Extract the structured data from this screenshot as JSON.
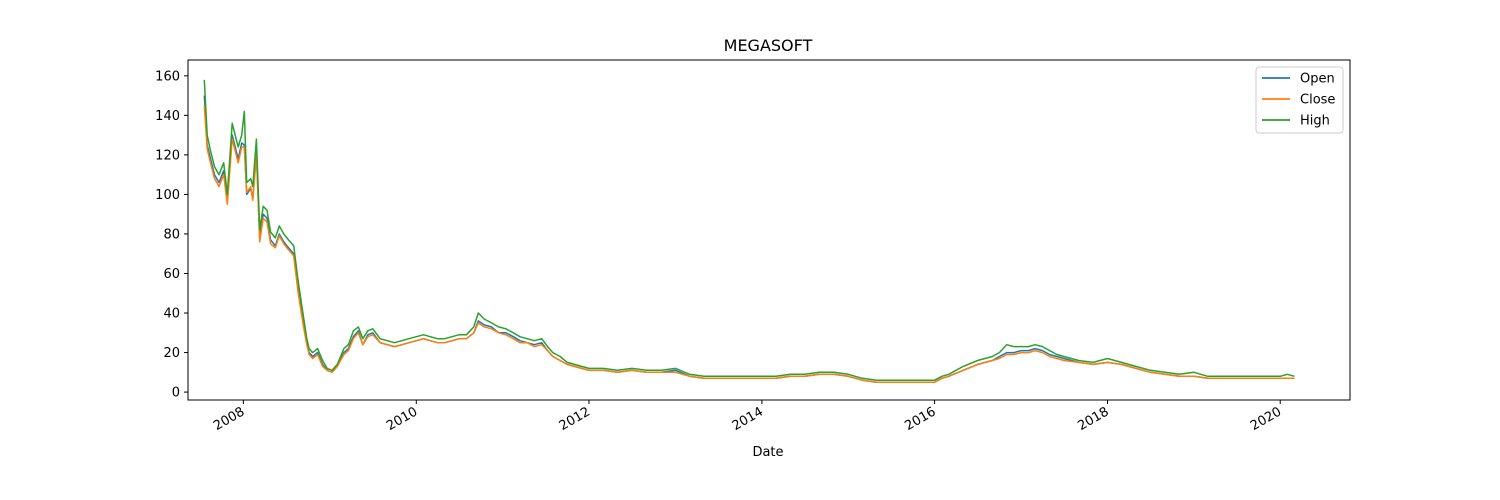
{
  "chart_data": {
    "type": "line",
    "title": "MEGASOFT",
    "xlabel": "Date",
    "ylabel": "",
    "x_ticks": [
      "2008",
      "2010",
      "2012",
      "2014",
      "2016",
      "2018",
      "2020"
    ],
    "y_ticks": [
      0,
      20,
      40,
      60,
      80,
      100,
      120,
      140,
      160
    ],
    "xlim": [
      "2007-05-12",
      "2020-10-22"
    ],
    "ylim": [
      -4,
      168
    ],
    "grid": false,
    "legend_position": "upper right",
    "x": [
      "2007-07-20",
      "2007-08-01",
      "2007-08-15",
      "2007-09-01",
      "2007-09-20",
      "2007-10-10",
      "2007-10-25",
      "2007-11-15",
      "2007-12-10",
      "2007-12-25",
      "2008-01-05",
      "2008-01-15",
      "2008-02-01",
      "2008-02-10",
      "2008-02-25",
      "2008-03-10",
      "2008-03-25",
      "2008-04-10",
      "2008-04-25",
      "2008-05-15",
      "2008-06-01",
      "2008-06-20",
      "2008-07-10",
      "2008-08-01",
      "2008-08-20",
      "2008-09-10",
      "2008-09-25",
      "2008-10-05",
      "2008-10-20",
      "2008-11-10",
      "2008-12-01",
      "2008-12-20",
      "2009-01-10",
      "2009-02-01",
      "2009-03-01",
      "2009-03-20",
      "2009-04-10",
      "2009-05-01",
      "2009-05-20",
      "2009-06-10",
      "2009-07-01",
      "2009-08-01",
      "2009-09-01",
      "2009-10-01",
      "2009-11-01",
      "2009-12-01",
      "2010-01-01",
      "2010-02-01",
      "2010-03-01",
      "2010-04-01",
      "2010-05-01",
      "2010-06-01",
      "2010-07-01",
      "2010-08-01",
      "2010-09-01",
      "2010-09-20",
      "2010-10-15",
      "2010-11-15",
      "2010-12-15",
      "2011-01-15",
      "2011-02-15",
      "2011-03-15",
      "2011-04-15",
      "2011-05-15",
      "2011-06-15",
      "2011-07-10",
      "2011-08-01",
      "2011-09-01",
      "2011-10-01",
      "2011-11-01",
      "2011-12-01",
      "2012-01-01",
      "2012-03-01",
      "2012-05-01",
      "2012-07-01",
      "2012-09-01",
      "2012-11-01",
      "2013-01-01",
      "2013-03-01",
      "2013-05-01",
      "2013-07-01",
      "2013-09-01",
      "2013-11-01",
      "2014-01-01",
      "2014-03-01",
      "2014-05-01",
      "2014-07-01",
      "2014-09-01",
      "2014-11-01",
      "2015-01-01",
      "2015-03-01",
      "2015-05-01",
      "2015-07-01",
      "2015-09-01",
      "2015-11-01",
      "2016-01-01",
      "2016-02-01",
      "2016-03-01",
      "2016-05-01",
      "2016-07-01",
      "2016-09-01",
      "2016-10-01",
      "2016-11-01",
      "2016-12-01",
      "2017-01-01",
      "2017-02-01",
      "2017-03-01",
      "2017-04-01",
      "2017-05-01",
      "2017-06-01",
      "2017-07-01",
      "2017-09-01",
      "2017-11-01",
      "2018-01-01",
      "2018-03-01",
      "2018-05-01",
      "2018-07-01",
      "2018-09-01",
      "2018-11-01",
      "2019-01-01",
      "2019-03-01",
      "2019-05-01",
      "2019-07-01",
      "2019-09-01",
      "2019-11-01",
      "2020-01-01",
      "2020-02-01",
      "2020-03-01"
    ],
    "series": [
      {
        "name": "Open",
        "color": "#1f77b4",
        "values": [
          150,
          125,
          118,
          110,
          106,
          112,
          97,
          130,
          118,
          126,
          125,
          100,
          103,
          98,
          122,
          78,
          90,
          88,
          77,
          74,
          80,
          76,
          73,
          70,
          52,
          36,
          25,
          20,
          18,
          20,
          14,
          11,
          10,
          13,
          20,
          22,
          28,
          31,
          24,
          29,
          30,
          25,
          24,
          23,
          24,
          25,
          26,
          27,
          26,
          25,
          25,
          26,
          27,
          27,
          30,
          36,
          34,
          33,
          30,
          30,
          28,
          26,
          25,
          24,
          25,
          21,
          18,
          16,
          14,
          13,
          12,
          11,
          11,
          10,
          11,
          10,
          10,
          11,
          8,
          7,
          7,
          7,
          7,
          7,
          7,
          8,
          8,
          9,
          9,
          8,
          6,
          5,
          5,
          5,
          5,
          5,
          7,
          8,
          11,
          14,
          16,
          18,
          20,
          20,
          21,
          21,
          22,
          21,
          19,
          18,
          17,
          15,
          14,
          15,
          14,
          12,
          10,
          9,
          8,
          8,
          7,
          7,
          7,
          7,
          7,
          7,
          7,
          7
        ]
      },
      {
        "name": "Close",
        "color": "#ff7f0e",
        "values": [
          145,
          123,
          116,
          108,
          104,
          110,
          95,
          128,
          116,
          124,
          124,
          101,
          104,
          97,
          120,
          76,
          88,
          86,
          75,
          73,
          79,
          75,
          72,
          69,
          50,
          34,
          24,
          19,
          17,
          19,
          13,
          11,
          10,
          13,
          19,
          21,
          27,
          30,
          24,
          28,
          29,
          25,
          24,
          23,
          24,
          25,
          26,
          27,
          26,
          25,
          25,
          26,
          27,
          27,
          30,
          35,
          33,
          32,
          30,
          29,
          27,
          25,
          25,
          23,
          24,
          21,
          18,
          16,
          14,
          13,
          12,
          11,
          11,
          10,
          11,
          10,
          10,
          10,
          8,
          7,
          7,
          7,
          7,
          7,
          7,
          8,
          8,
          9,
          9,
          8,
          6,
          5,
          5,
          5,
          5,
          5,
          7,
          8,
          11,
          14,
          16,
          17,
          19,
          19,
          20,
          20,
          21,
          20,
          18,
          17,
          16,
          15,
          14,
          15,
          14,
          12,
          10,
          9,
          8,
          8,
          7,
          7,
          7,
          7,
          7,
          7,
          7,
          7
        ]
      },
      {
        "name": "High",
        "color": "#2ca02c",
        "values": [
          158,
          130,
          122,
          114,
          110,
          116,
          100,
          136,
          124,
          130,
          142,
          106,
          108,
          104,
          128,
          82,
          94,
          92,
          81,
          78,
          84,
          80,
          77,
          74,
          56,
          39,
          27,
          22,
          20,
          22,
          16,
          12,
          11,
          14,
          22,
          24,
          31,
          33,
          27,
          31,
          32,
          27,
          26,
          25,
          26,
          27,
          28,
          29,
          28,
          27,
          27,
          28,
          29,
          29,
          33,
          40,
          37,
          35,
          33,
          32,
          30,
          28,
          27,
          26,
          27,
          23,
          20,
          18,
          15,
          14,
          13,
          12,
          12,
          11,
          12,
          11,
          11,
          12,
          9,
          8,
          8,
          8,
          8,
          8,
          8,
          9,
          9,
          10,
          10,
          9,
          7,
          6,
          6,
          6,
          6,
          6,
          8,
          9,
          13,
          16,
          18,
          20,
          24,
          23,
          23,
          23,
          24,
          23,
          21,
          19,
          18,
          16,
          15,
          17,
          15,
          13,
          11,
          10,
          9,
          10,
          8,
          8,
          8,
          8,
          8,
          8,
          9,
          8
        ]
      }
    ]
  }
}
